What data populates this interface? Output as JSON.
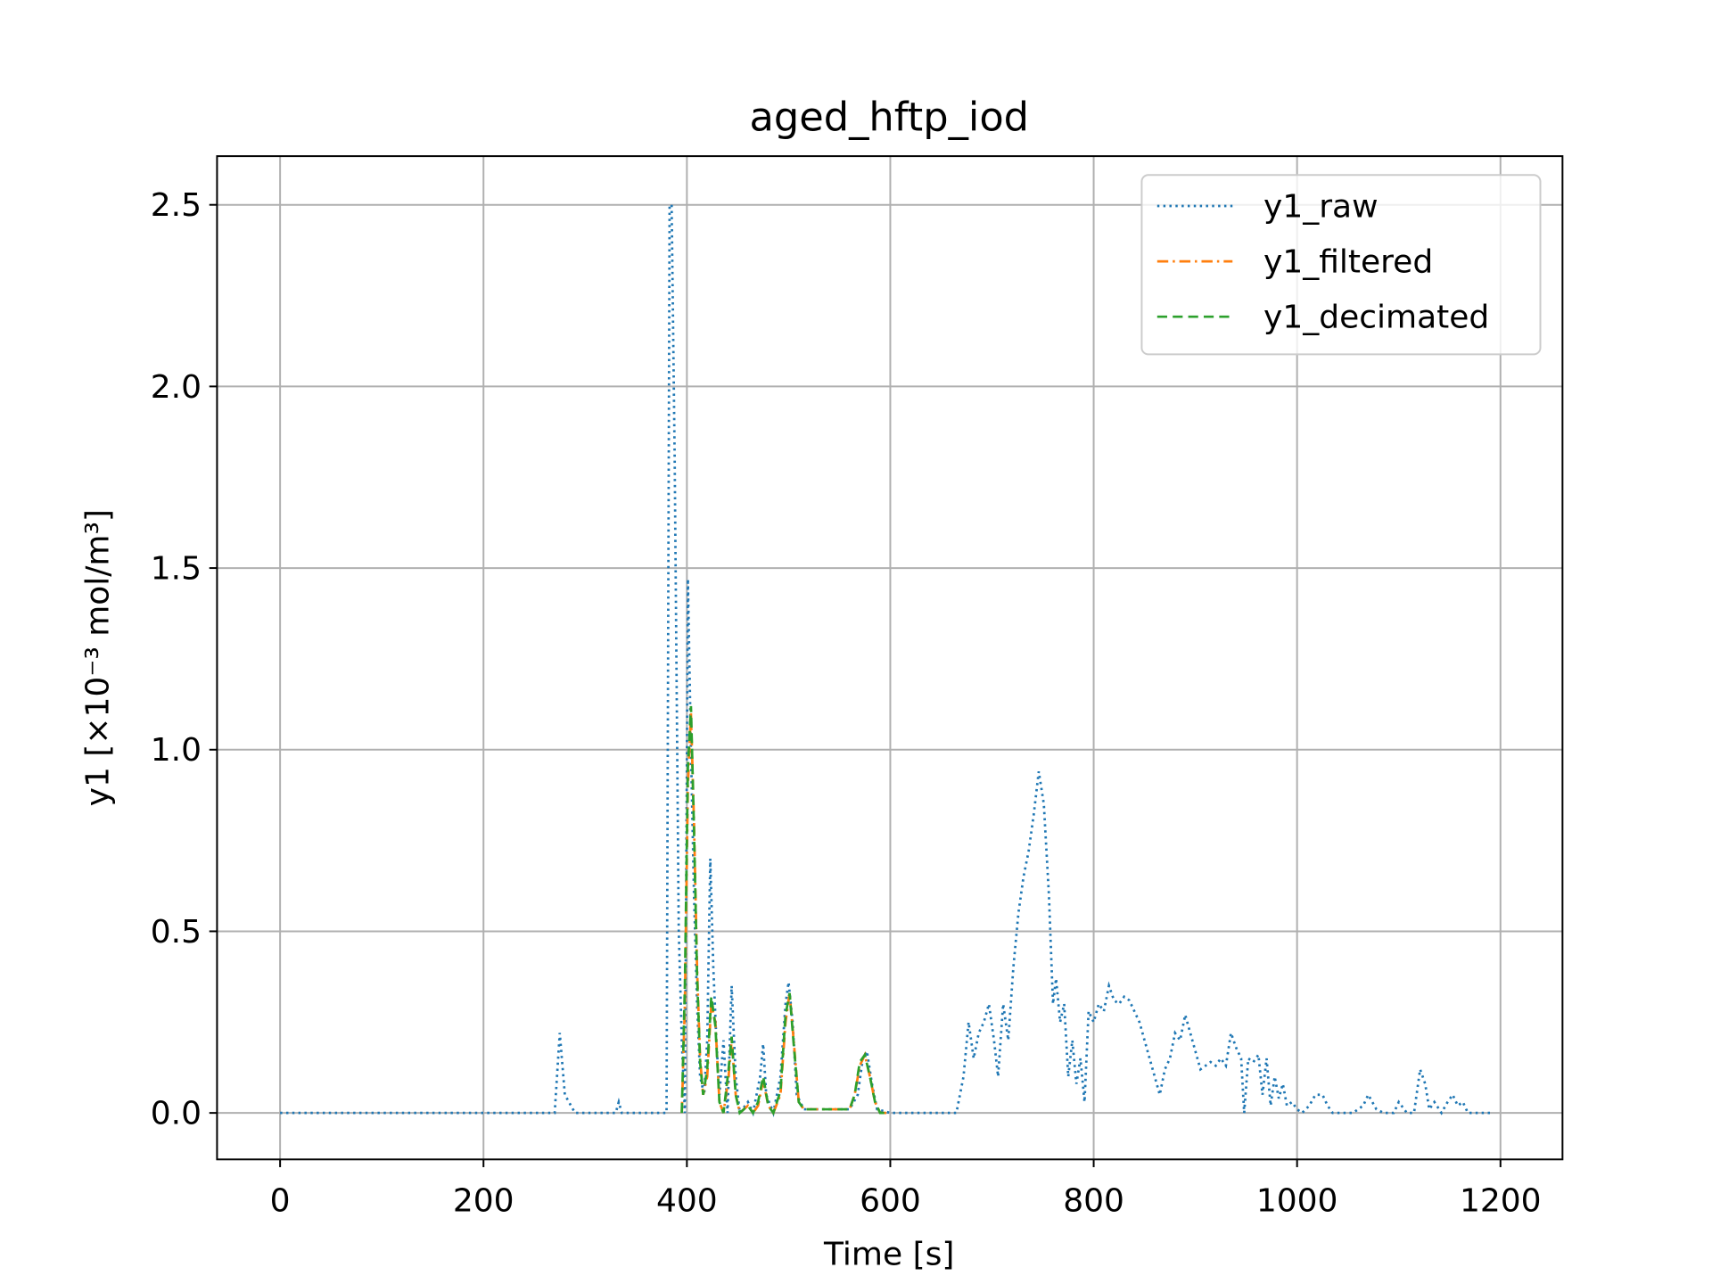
{
  "chart_data": {
    "type": "line",
    "title": "aged_hftp_iod",
    "x_label": "Time [s]",
    "y_label": "y1   [×10⁻³ mol/m³]",
    "xlim": [
      -62,
      1261
    ],
    "ylim": [
      -0.128,
      2.634
    ],
    "xticks": [
      0,
      200,
      400,
      600,
      800,
      1000,
      1200
    ],
    "yticks": [
      {
        "value": 0,
        "label": "0.0"
      },
      0.5,
      {
        "value": 1,
        "label": "1.0"
      },
      1.5,
      {
        "value": 2,
        "label": "2.0"
      },
      2.5
    ],
    "grid": true,
    "legend": "upper right",
    "series": [
      {
        "name": "y1_raw",
        "color": "#1f77b4",
        "style": "dotted",
        "x": [
          0,
          270,
          275,
          280,
          290,
          330,
          333,
          336,
          380,
          383,
          385,
          388,
          392,
          395,
          398,
          401,
          404,
          407,
          410,
          413,
          417,
          420,
          423,
          426,
          429,
          432,
          436,
          440,
          444,
          448,
          452,
          460,
          465,
          472,
          475,
          478,
          485,
          492,
          497,
          500,
          504,
          508,
          515,
          540,
          560,
          568,
          573,
          577,
          582,
          587,
          600,
          665,
          672,
          677,
          682,
          687,
          692,
          697,
          702,
          706,
          711,
          716,
          721,
          726,
          731,
          736,
          741,
          746,
          751,
          756,
          760,
          763,
          767,
          771,
          775,
          779,
          783,
          787,
          791,
          795,
          800,
          805,
          810,
          815,
          820,
          825,
          830,
          835,
          840,
          845,
          850,
          855,
          860,
          865,
          870,
          875,
          880,
          885,
          890,
          895,
          900,
          905,
          910,
          915,
          920,
          925,
          930,
          935,
          940,
          945,
          948,
          952,
          957,
          962,
          966,
          970,
          974,
          978,
          982,
          986,
          990,
          995,
          1000,
          1005,
          1012,
          1018,
          1025,
          1030,
          1035,
          1045,
          1055,
          1065,
          1070,
          1078,
          1085,
          1095,
          1100,
          1108,
          1115,
          1121,
          1126,
          1130,
          1135,
          1142,
          1148,
          1153,
          1158,
          1163,
          1168,
          1190
        ],
        "values": [
          0,
          0,
          0.22,
          0.05,
          0,
          0,
          0.03,
          0,
          0,
          2.5,
          2.5,
          1.8,
          0.5,
          0.2,
          0,
          1.47,
          1.0,
          0.6,
          0.3,
          0.1,
          0.05,
          0.2,
          0.7,
          0.4,
          0.2,
          0.05,
          0.2,
          0,
          0.35,
          0.1,
          0,
          0.03,
          0,
          0.1,
          0.19,
          0.05,
          0,
          0.1,
          0.3,
          0.36,
          0.25,
          0.05,
          0.01,
          0.01,
          0.01,
          0.05,
          0.15,
          0.17,
          0.08,
          0.01,
          0,
          0,
          0.1,
          0.25,
          0.15,
          0.22,
          0.25,
          0.3,
          0.2,
          0.1,
          0.3,
          0.2,
          0.4,
          0.55,
          0.65,
          0.72,
          0.82,
          0.94,
          0.85,
          0.6,
          0.3,
          0.37,
          0.25,
          0.3,
          0.1,
          0.2,
          0.08,
          0.15,
          0.03,
          0.28,
          0.25,
          0.3,
          0.28,
          0.35,
          0.31,
          0.3,
          0.32,
          0.31,
          0.28,
          0.25,
          0.2,
          0.15,
          0.1,
          0.05,
          0.12,
          0.15,
          0.22,
          0.2,
          0.27,
          0.22,
          0.17,
          0.12,
          0.13,
          0.14,
          0.13,
          0.15,
          0.13,
          0.22,
          0.18,
          0.15,
          0,
          0.15,
          0.14,
          0.16,
          0.05,
          0.15,
          0.02,
          0.1,
          0.04,
          0.08,
          0.02,
          0.03,
          0.01,
          0,
          0.02,
          0.05,
          0.05,
          0.02,
          0,
          0,
          0,
          0.02,
          0.05,
          0.01,
          0,
          0,
          0.03,
          0,
          0,
          0.12,
          0.08,
          0.01,
          0.03,
          0,
          0.03,
          0.05,
          0.02,
          0.03,
          0,
          0
        ]
      },
      {
        "name": "y1_filtered",
        "color": "#ff7f0e",
        "style": "dashdot",
        "x": [
          395,
          398,
          401,
          404,
          407,
          410,
          413,
          416,
          420,
          424,
          428,
          432,
          436,
          441,
          444,
          448,
          452,
          460,
          465,
          470,
          475,
          480,
          485,
          492,
          497,
          501,
          505,
          510,
          515,
          560,
          565,
          570,
          575,
          580,
          585,
          590,
          597
        ],
        "values": [
          0,
          0.3,
          0.9,
          1.1,
          0.8,
          0.4,
          0.15,
          0.05,
          0.1,
          0.3,
          0.25,
          0.03,
          0,
          0.1,
          0.2,
          0.05,
          0,
          0.02,
          0,
          0.02,
          0.09,
          0.02,
          0,
          0.05,
          0.25,
          0.33,
          0.2,
          0.03,
          0.01,
          0.01,
          0.05,
          0.13,
          0.16,
          0.1,
          0.03,
          0,
          0
        ]
      },
      {
        "name": "y1_decimated",
        "color": "#2ca02c",
        "style": "dashed",
        "x": [
          395,
          398,
          401,
          404,
          407,
          410,
          413,
          416,
          420,
          424,
          428,
          432,
          436,
          441,
          444,
          448,
          452,
          460,
          465,
          470,
          475,
          480,
          485,
          492,
          497,
          501,
          505,
          510,
          515,
          560,
          565,
          570,
          575,
          580,
          585,
          590,
          597
        ],
        "values": [
          0,
          0.35,
          0.95,
          1.12,
          0.78,
          0.38,
          0.14,
          0.05,
          0.12,
          0.32,
          0.24,
          0.03,
          0,
          0.12,
          0.21,
          0.05,
          0,
          0.02,
          0,
          0.03,
          0.1,
          0.02,
          0,
          0.06,
          0.27,
          0.33,
          0.19,
          0.03,
          0.01,
          0.01,
          0.05,
          0.14,
          0.16,
          0.1,
          0.03,
          0,
          0
        ]
      }
    ]
  }
}
